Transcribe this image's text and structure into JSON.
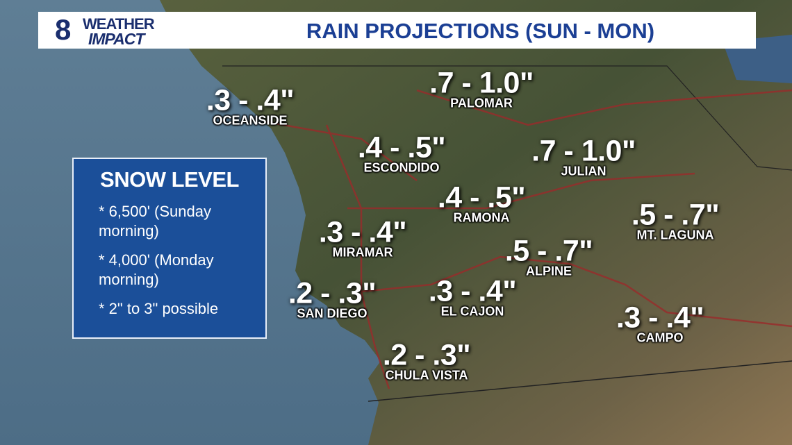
{
  "header": {
    "logo": {
      "number": "8",
      "line1": "WEATHER",
      "line2": "IMPACT"
    },
    "title": "RAIN PROJECTIONS (SUN - MON)"
  },
  "snow_box": {
    "title": "SNOW LEVEL",
    "items": [
      "* 6,500' (Sunday morning)",
      "* 4,000' (Monday morning)",
      "* 2\" to 3\" possible"
    ]
  },
  "locations": [
    {
      "amount": ".3 - .4\"",
      "name": "OCEANSIDE"
    },
    {
      "amount": ".7 - 1.0\"",
      "name": "PALOMAR"
    },
    {
      "amount": ".4 - .5\"",
      "name": "ESCONDIDO"
    },
    {
      "amount": ".7 - 1.0\"",
      "name": "JULIAN"
    },
    {
      "amount": ".4 - .5\"",
      "name": "RAMONA"
    },
    {
      "amount": ".5 - .7\"",
      "name": "MT. LAGUNA"
    },
    {
      "amount": ".3 - .4\"",
      "name": "MIRAMAR"
    },
    {
      "amount": ".5 - .7\"",
      "name": "ALPINE"
    },
    {
      "amount": ".2 - .3\"",
      "name": "SAN DIEGO"
    },
    {
      "amount": ".3 - .4\"",
      "name": "EL CAJON"
    },
    {
      "amount": ".3 - .4\"",
      "name": "CAMPO"
    },
    {
      "amount": ".2 - .3\"",
      "name": "CHULA VISTA"
    }
  ]
}
